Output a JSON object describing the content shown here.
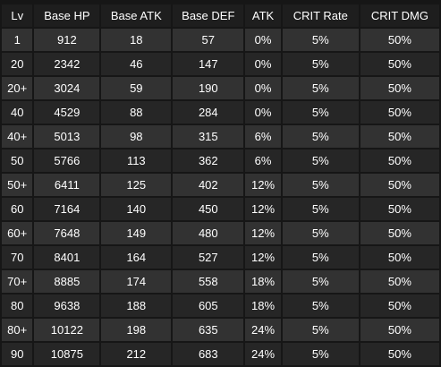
{
  "table": {
    "headers": [
      "Lv",
      "Base HP",
      "Base ATK",
      "Base DEF",
      "ATK",
      "CRIT Rate",
      "CRIT DMG"
    ],
    "rows": [
      [
        "1",
        "912",
        "18",
        "57",
        "0%",
        "5%",
        "50%"
      ],
      [
        "20",
        "2342",
        "46",
        "147",
        "0%",
        "5%",
        "50%"
      ],
      [
        "20+",
        "3024",
        "59",
        "190",
        "0%",
        "5%",
        "50%"
      ],
      [
        "40",
        "4529",
        "88",
        "284",
        "0%",
        "5%",
        "50%"
      ],
      [
        "40+",
        "5013",
        "98",
        "315",
        "6%",
        "5%",
        "50%"
      ],
      [
        "50",
        "5766",
        "113",
        "362",
        "6%",
        "5%",
        "50%"
      ],
      [
        "50+",
        "6411",
        "125",
        "402",
        "12%",
        "5%",
        "50%"
      ],
      [
        "60",
        "7164",
        "140",
        "450",
        "12%",
        "5%",
        "50%"
      ],
      [
        "60+",
        "7648",
        "149",
        "480",
        "12%",
        "5%",
        "50%"
      ],
      [
        "70",
        "8401",
        "164",
        "527",
        "12%",
        "5%",
        "50%"
      ],
      [
        "70+",
        "8885",
        "174",
        "558",
        "18%",
        "5%",
        "50%"
      ],
      [
        "80",
        "9638",
        "188",
        "605",
        "18%",
        "5%",
        "50%"
      ],
      [
        "80+",
        "10122",
        "198",
        "635",
        "24%",
        "5%",
        "50%"
      ],
      [
        "90",
        "10875",
        "212",
        "683",
        "24%",
        "5%",
        "50%"
      ]
    ]
  }
}
